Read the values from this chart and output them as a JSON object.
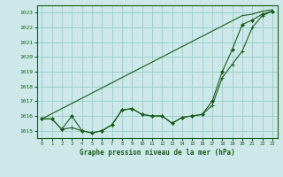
{
  "xlabel": "Graphe pression niveau de la mer (hPa)",
  "ylim": [
    1014.5,
    1023.5
  ],
  "xlim": [
    -0.5,
    23.5
  ],
  "yticks": [
    1015,
    1016,
    1017,
    1018,
    1019,
    1020,
    1021,
    1022,
    1023
  ],
  "xticks": [
    0,
    1,
    2,
    3,
    4,
    5,
    6,
    7,
    8,
    9,
    10,
    11,
    12,
    13,
    14,
    15,
    16,
    17,
    18,
    19,
    20,
    21,
    22,
    23
  ],
  "bg_color": "#cce8e8",
  "grid_color": "#99cccc",
  "line_color": "#1a5c1a",
  "label_color": "#1a5c1a",
  "series_straight": [
    1015.8,
    1016.15,
    1016.5,
    1016.85,
    1017.2,
    1017.55,
    1017.9,
    1018.25,
    1018.6,
    1018.95,
    1019.3,
    1019.65,
    1020.0,
    1020.35,
    1020.7,
    1021.05,
    1021.4,
    1021.75,
    1022.1,
    1022.45,
    1022.8,
    1022.9,
    1023.1,
    1023.2
  ],
  "series_curved1": [
    1015.8,
    1015.8,
    1015.1,
    1015.2,
    1015.0,
    1014.85,
    1015.0,
    1015.4,
    1016.4,
    1016.5,
    1016.1,
    1016.0,
    1016.0,
    1015.5,
    1015.9,
    1016.0,
    1016.1,
    1016.7,
    1018.6,
    1019.5,
    1020.4,
    1022.0,
    1022.8,
    1023.1
  ],
  "series_curved2": [
    1015.8,
    1015.8,
    1015.1,
    1016.0,
    1015.0,
    1014.85,
    1015.0,
    1015.4,
    1016.4,
    1016.5,
    1016.1,
    1016.0,
    1016.0,
    1015.5,
    1015.9,
    1016.0,
    1016.1,
    1017.0,
    1019.0,
    1020.5,
    1022.2,
    1022.5,
    1022.9,
    1023.1
  ]
}
